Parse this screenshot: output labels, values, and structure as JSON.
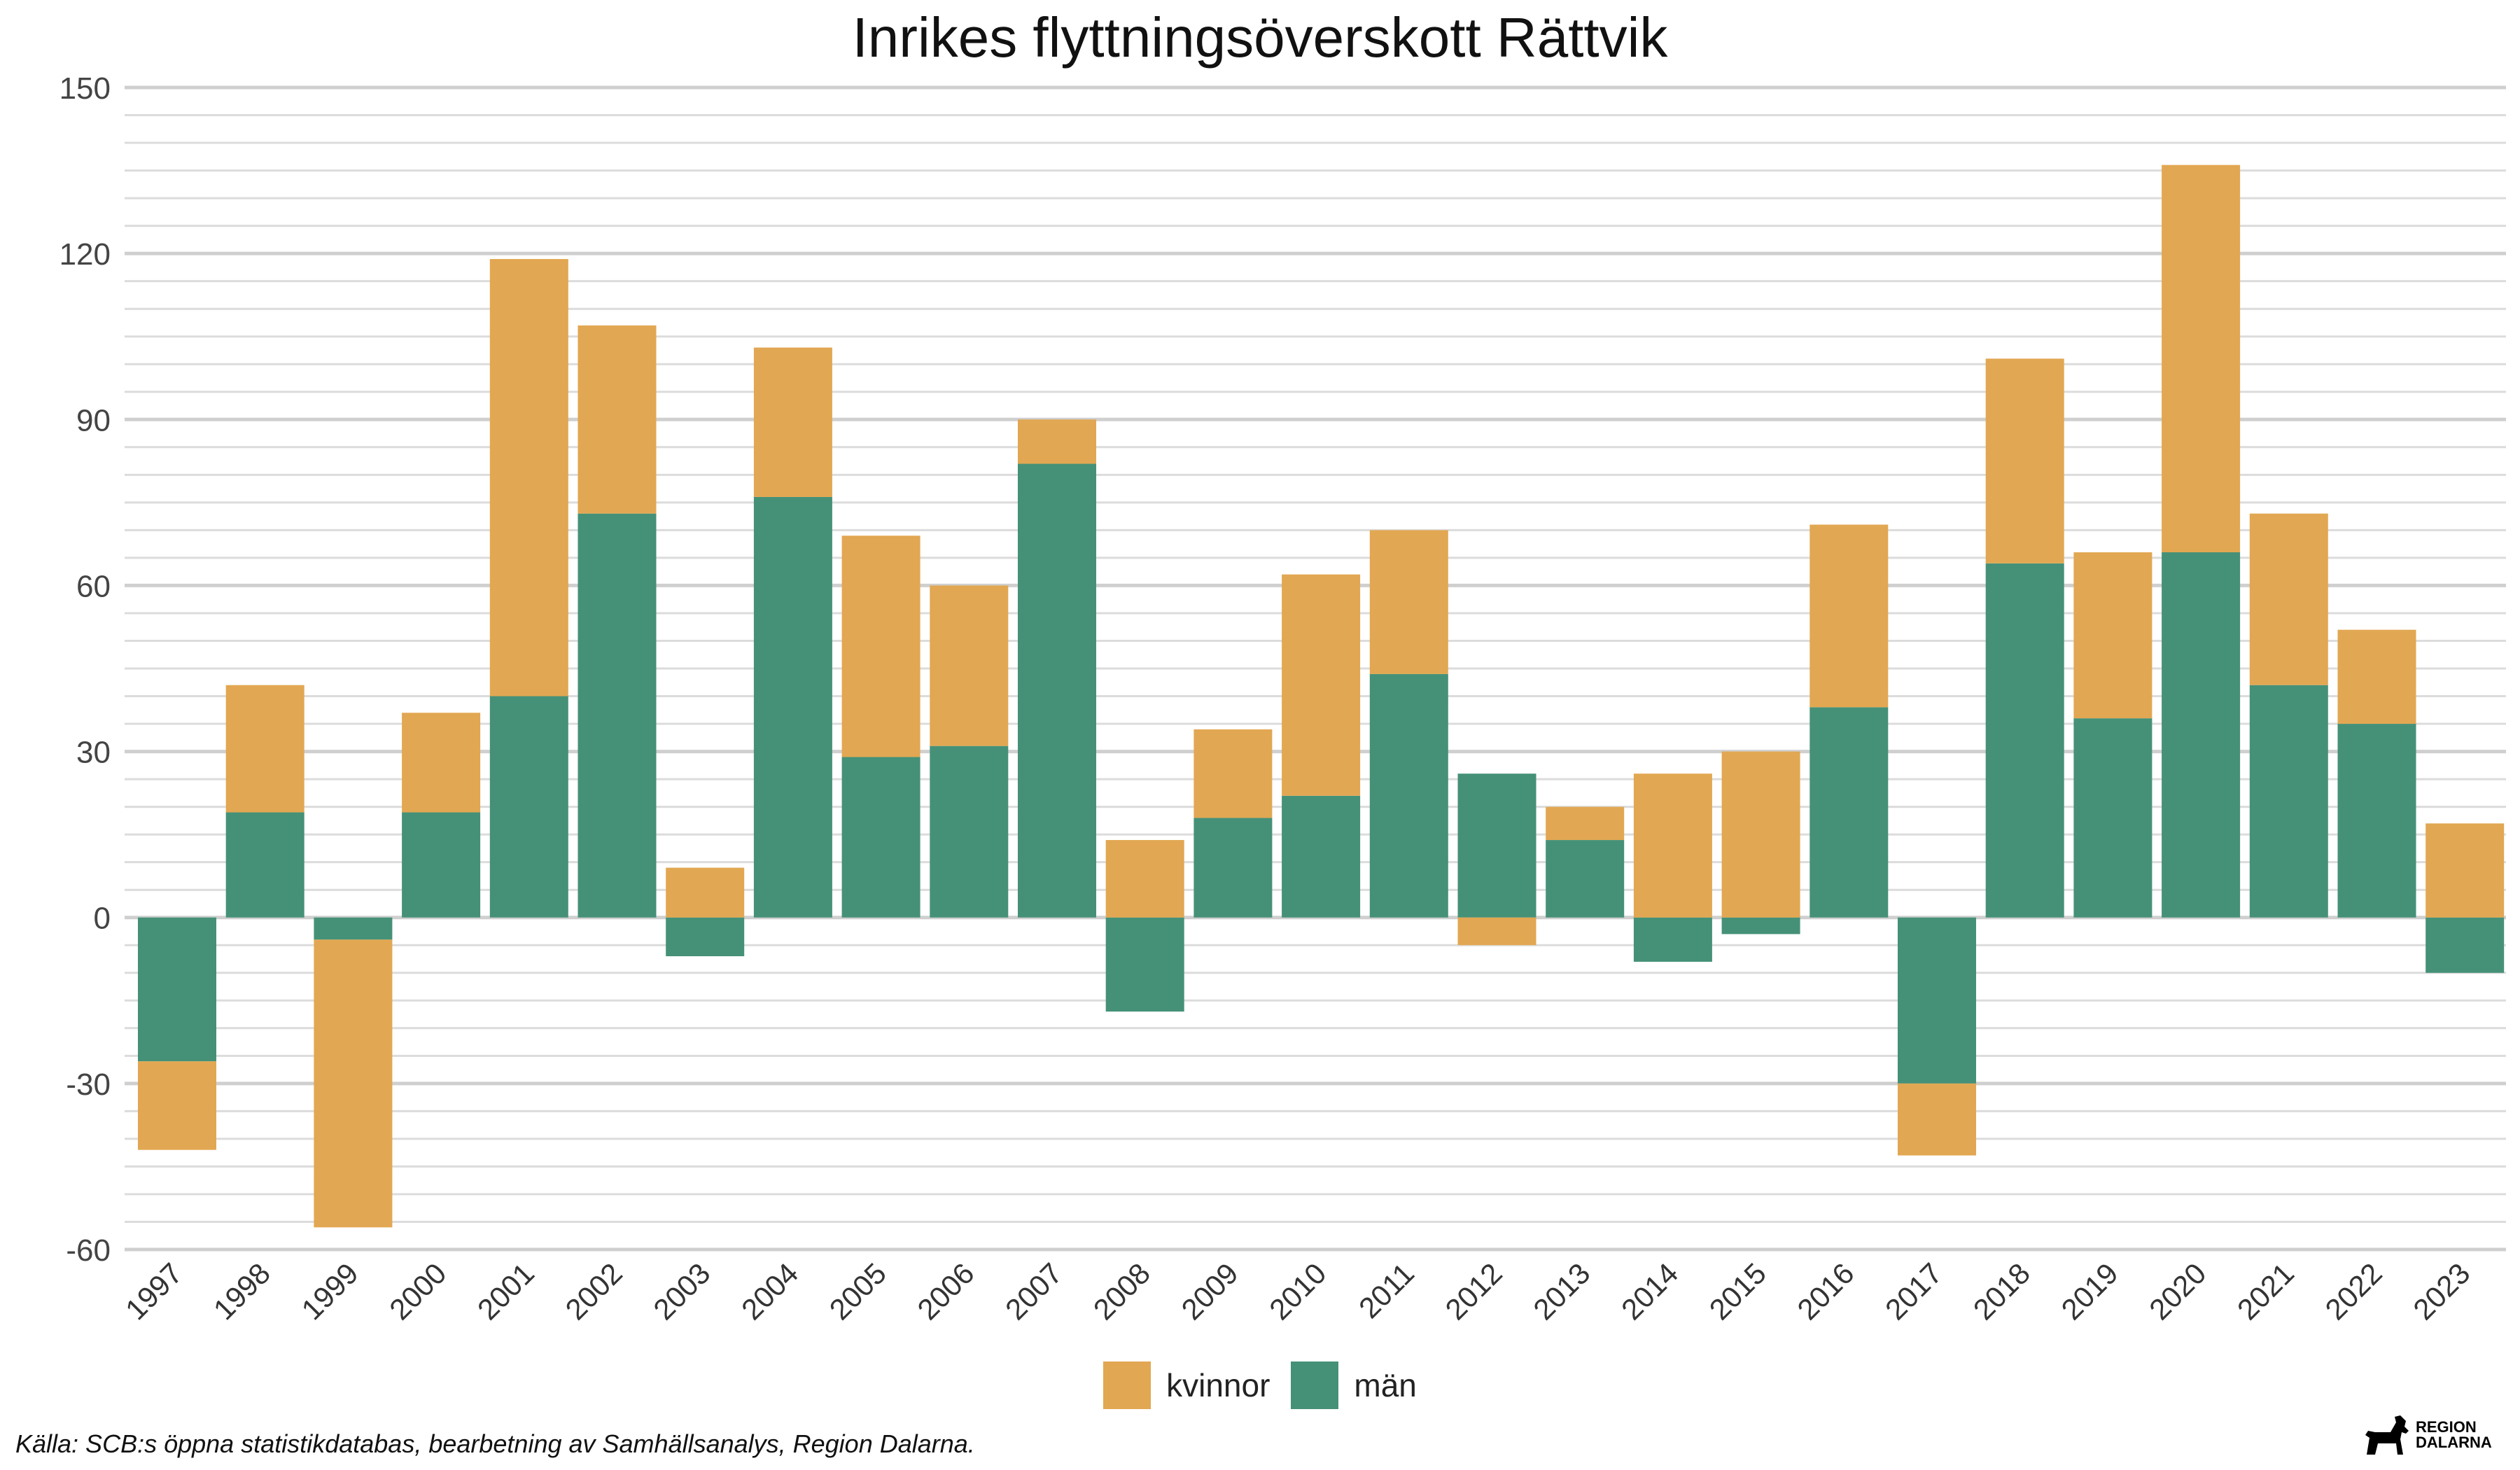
{
  "chart_data": {
    "type": "bar",
    "stacked": true,
    "title": "Inrikes flyttningsöverskott Rättvik",
    "xlabel": "",
    "ylabel": "",
    "ylim": [
      -60,
      150
    ],
    "yticks": [
      150,
      120,
      90,
      60,
      30,
      0,
      -30,
      -60
    ],
    "grid": true,
    "legend_position": "bottom",
    "categories": [
      "1997",
      "1998",
      "1999",
      "2000",
      "2001",
      "2002",
      "2003",
      "2004",
      "2005",
      "2006",
      "2007",
      "2008",
      "2009",
      "2010",
      "2011",
      "2012",
      "2013",
      "2014",
      "2015",
      "2016",
      "2017",
      "2018",
      "2019",
      "2020",
      "2021",
      "2022",
      "2023"
    ],
    "series": [
      {
        "name": "män",
        "color": "#459178",
        "values": [
          -26,
          19,
          -4,
          19,
          40,
          73,
          -7,
          76,
          29,
          31,
          82,
          -17,
          18,
          22,
          44,
          26,
          14,
          -8,
          -3,
          38,
          -30,
          64,
          36,
          66,
          42,
          35,
          -10
        ]
      },
      {
        "name": "kvinnor",
        "color": "#E2A752",
        "values": [
          -16,
          23,
          -52,
          18,
          79,
          34,
          9,
          27,
          40,
          29,
          8,
          14,
          16,
          40,
          26,
          -5,
          6,
          26,
          30,
          33,
          -13,
          37,
          30,
          70,
          31,
          17,
          17
        ]
      }
    ]
  },
  "legend": {
    "kvinnor": "kvinnor",
    "man": "män"
  },
  "source_note": "Källa: SCB:s öppna statistikdatabas, bearbetning av Samhällsanalys, Region Dalarna.",
  "logo": {
    "line1": "REGION",
    "line2": "DALARNA"
  }
}
